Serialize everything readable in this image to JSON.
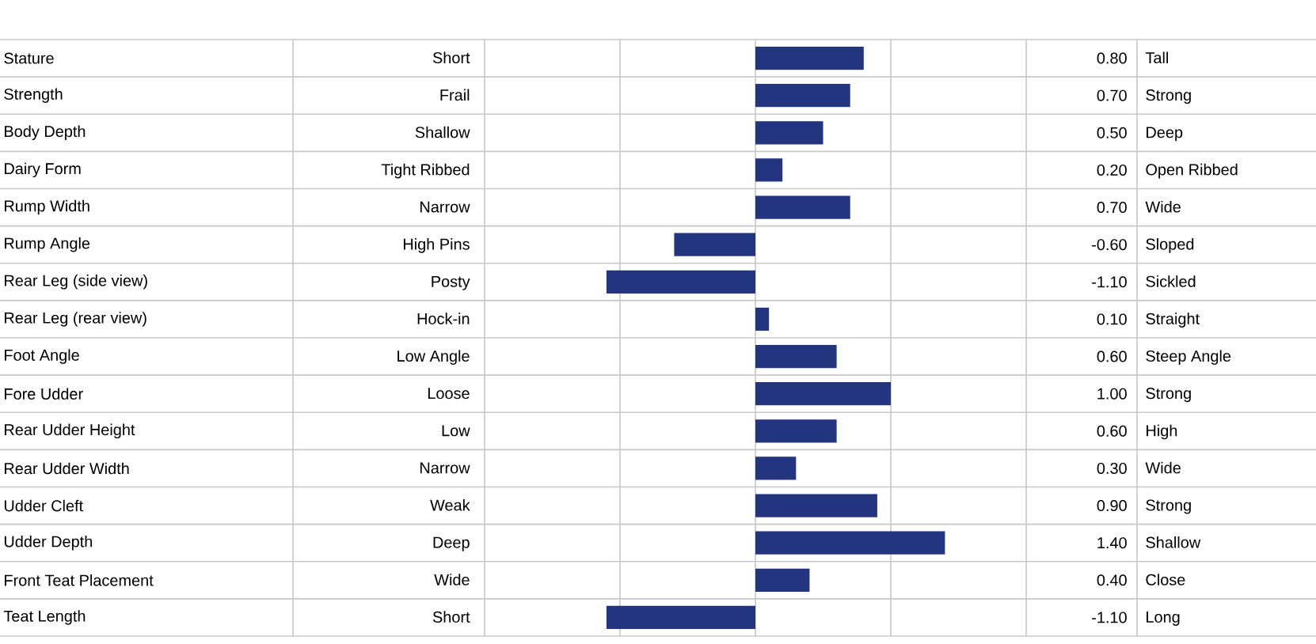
{
  "chart_data": {
    "type": "bar",
    "orientation": "horizontal",
    "categories": [
      "Stature",
      "Strength",
      "Body Depth",
      "Dairy Form",
      "Rump Width",
      "Rump Angle",
      "Rear Leg (side view)",
      "Rear Leg (rear view)",
      "Foot Angle",
      "Fore Udder",
      "Rear Udder Height",
      "Rear Udder Width",
      "Udder Cleft",
      "Udder Depth",
      "Front Teat Placement",
      "Teat Length"
    ],
    "values": [
      0.8,
      0.7,
      0.5,
      0.2,
      0.7,
      -0.6,
      -1.1,
      0.1,
      0.6,
      1.0,
      0.6,
      0.3,
      0.9,
      1.4,
      0.4,
      -1.1
    ],
    "value_labels": [
      "0.80",
      "0.70",
      "0.50",
      "0.20",
      "0.70",
      "-0.60",
      "-1.10",
      "0.10",
      "0.60",
      "1.00",
      "0.60",
      "0.30",
      "0.90",
      "1.40",
      "0.40",
      "-1.10"
    ],
    "color": "#24357f",
    "xlim": [
      -2,
      2
    ],
    "xticks": [
      {
        "value": -2,
        "label": null
      },
      {
        "value": -1,
        "label": null
      },
      {
        "value": 0,
        "label": null
      },
      {
        "value": 1,
        "label": null
      },
      {
        "value": 2,
        "label": null
      }
    ],
    "grid": "x",
    "annotations": [
      "Short",
      "Tall",
      "Frail",
      "Strong",
      "Shallow",
      "Deep",
      "Tight Ribbed",
      "Open Ribbed",
      "Narrow",
      "Wide",
      "High Pins",
      "Sloped",
      "Posty",
      "Sickled",
      "Hock-in",
      "Straight",
      "Low Angle",
      "Steep Angle",
      "Loose",
      "Strong",
      "Low",
      "High",
      "Narrow",
      "Wide",
      "Weak",
      "Strong",
      "Deep",
      "Shallow",
      "Wide",
      "Close",
      "Short",
      "Long"
    ]
  }
}
